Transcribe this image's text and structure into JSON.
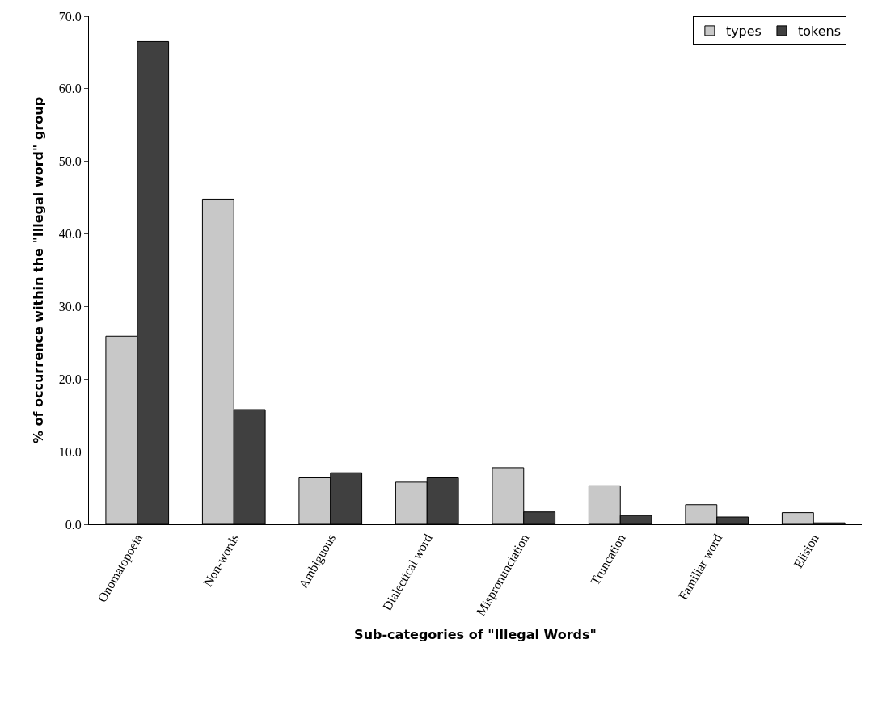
{
  "chart_data": {
    "type": "bar",
    "xlabel": "Sub-categories of \"Illegal Words\"",
    "ylabel": "% of occurrence within the \"Illegal word\" group",
    "categories": [
      "Onomatopoeia",
      "Non-words",
      "Ambiguous",
      "Dialectical word",
      "Mispronunciation",
      "Truncation",
      "Familiar word",
      "Elision"
    ],
    "series": [
      {
        "name": "types",
        "color": "#c8c8c8",
        "values": [
          25.9,
          44.8,
          6.4,
          5.8,
          7.8,
          5.3,
          2.7,
          1.6
        ]
      },
      {
        "name": "tokens",
        "color": "#404040",
        "values": [
          66.5,
          15.8,
          7.1,
          6.4,
          1.7,
          1.2,
          1.0,
          0.2
        ]
      }
    ],
    "ylim": [
      0,
      70
    ],
    "yticks": [
      {
        "value": 0,
        "label": "0.0"
      },
      {
        "value": 10,
        "label": "10.0"
      },
      {
        "value": 20,
        "label": "20.0"
      },
      {
        "value": 30,
        "label": "30.0"
      },
      {
        "value": 40,
        "label": "40.0"
      },
      {
        "value": 50,
        "label": "50.0"
      },
      {
        "value": 60,
        "label": "60.0"
      },
      {
        "value": 70,
        "label": "70.0"
      }
    ],
    "grid": false,
    "legend": "top right"
  }
}
